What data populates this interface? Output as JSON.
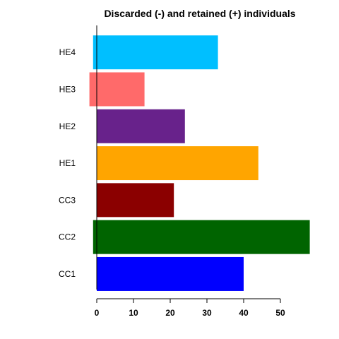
{
  "chart_data": {
    "type": "bar",
    "orientation": "horizontal",
    "title": "Discarded (-) and retained (+) individuals",
    "xlabel": "",
    "ylabel": "",
    "categories": [
      "CC1",
      "CC2",
      "CC3",
      "HE1",
      "HE2",
      "HE3",
      "HE4"
    ],
    "series": [
      {
        "values": [
          0,
          -1,
          0,
          0,
          0,
          -2,
          -1
        ]
      },
      {
        "values": [
          40,
          58,
          21,
          44,
          24,
          13,
          33
        ]
      }
    ],
    "colors": [
      "#0000FF",
      "#006400",
      "#8B0000",
      "#FFA500",
      "#68228B",
      "#FF6A6A",
      "#00BFFF"
    ],
    "xlim": [
      -2,
      58
    ],
    "xticks": [
      0,
      10,
      20,
      30,
      40,
      50
    ],
    "grid": false,
    "legend": "none"
  }
}
